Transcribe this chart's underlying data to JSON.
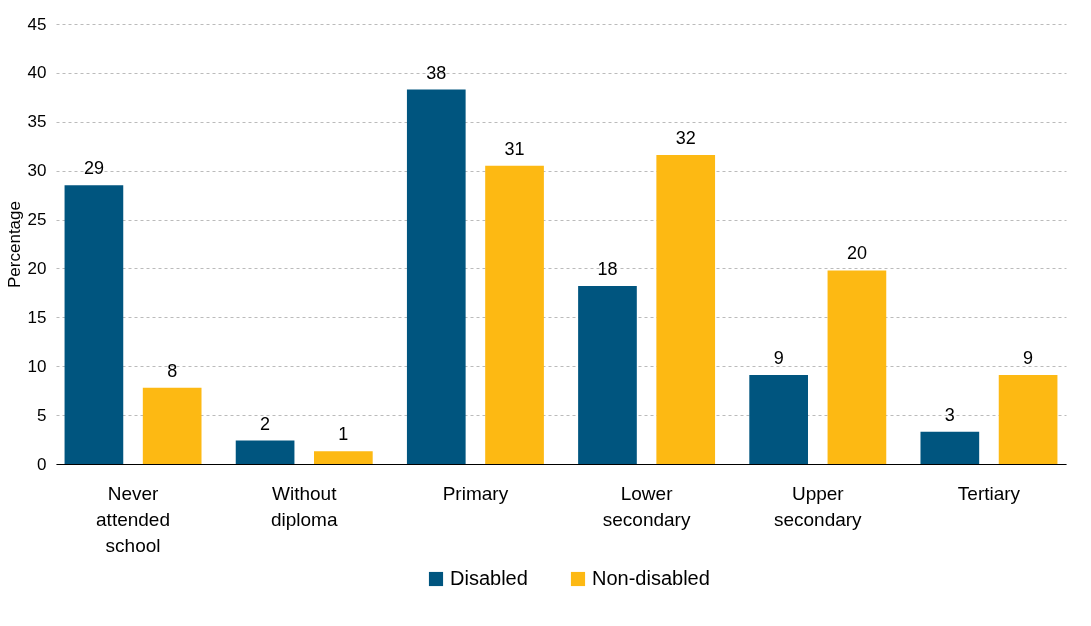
{
  "chart_data": {
    "type": "bar",
    "ylabel": "Percentage",
    "categories": [
      "Never attended school",
      "Without diploma",
      "Primary",
      "Lower secondary",
      "Upper secondary",
      "Tertiary"
    ],
    "series": [
      {
        "name": "Disabled",
        "color": "#00557f",
        "values": [
          28.5,
          2.4,
          38.3,
          18.2,
          9.1,
          3.3
        ],
        "value_labels": [
          "29",
          "2",
          "38",
          "18",
          "9",
          "3"
        ]
      },
      {
        "name": "Non-disabled",
        "color": "#fdb913",
        "values": [
          7.8,
          1.3,
          30.5,
          31.6,
          19.8,
          9.1
        ],
        "value_labels": [
          "8",
          "1",
          "31",
          "32",
          "20",
          "9"
        ]
      }
    ],
    "ylim": [
      0,
      45
    ],
    "yticks": [
      0,
      5,
      10,
      15,
      20,
      25,
      30,
      35,
      40,
      45
    ],
    "grid": "y",
    "legend": "bottom"
  }
}
